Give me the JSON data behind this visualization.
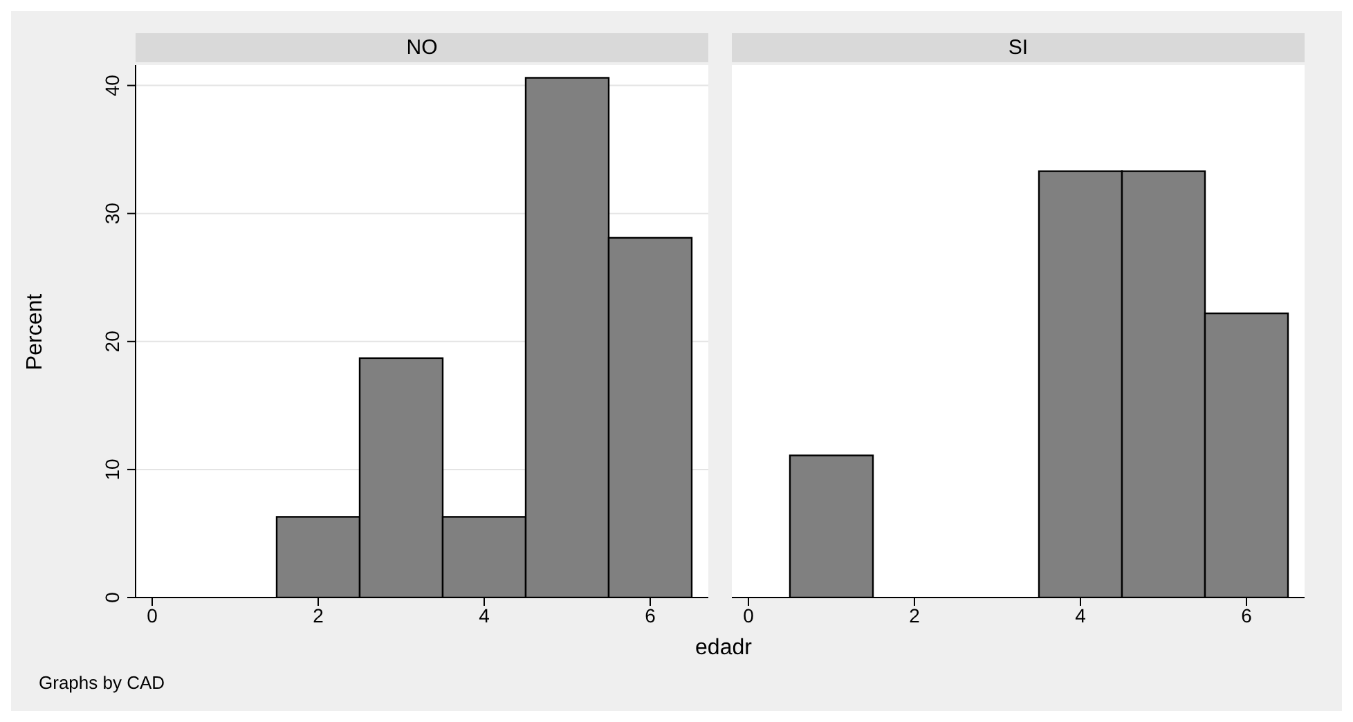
{
  "chart_data": [
    {
      "type": "histogram",
      "title": "NO",
      "xlabel": "edadr",
      "ylabel": "Percent",
      "annotations": [
        "Graphs by CAD"
      ],
      "bins": [
        1.5,
        2.5,
        3.5,
        4.5,
        5.5,
        6.5
      ],
      "values": [
        6.3,
        18.7,
        6.3,
        40.6,
        28.1
      ],
      "color": "#808080",
      "xlim": [
        -0.2,
        6.7
      ],
      "xticks": [
        0,
        2,
        4,
        6
      ],
      "ylim": [
        0,
        41.6
      ],
      "yticks": [
        0,
        10,
        20,
        30,
        40
      ],
      "grid": "y"
    },
    {
      "type": "histogram",
      "title": "SI",
      "bins": [
        0.5,
        1.5,
        2.5,
        3.5,
        4.5,
        5.5,
        6.5
      ],
      "values": [
        11.1,
        0,
        0,
        33.3,
        33.3,
        22.2
      ],
      "color": "#808080",
      "xlim": [
        -0.2,
        6.7
      ],
      "xticks": [
        0,
        2,
        4,
        6
      ],
      "ylim": [
        0,
        41.6
      ],
      "yticks": [
        0,
        10,
        20,
        30,
        40
      ],
      "grid": "y",
      "tick_labels": "x"
    }
  ]
}
